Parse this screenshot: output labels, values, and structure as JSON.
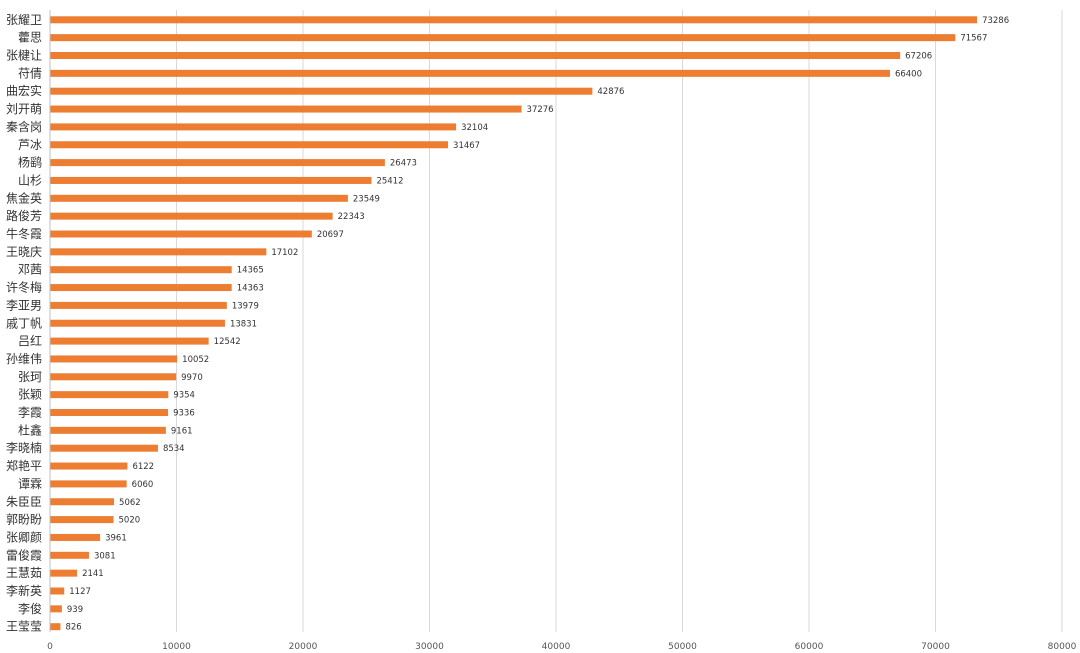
{
  "chart_data": {
    "type": "bar",
    "orientation": "horizontal",
    "title": "",
    "xlabel": "",
    "ylabel": "",
    "xlim": [
      0,
      80000
    ],
    "x_ticks": [
      0,
      10000,
      20000,
      30000,
      40000,
      50000,
      60000,
      70000,
      80000
    ],
    "grid": "vertical",
    "legend": "none",
    "bar_color": "#ed7d31",
    "categories": [
      "张耀卫",
      "藿思",
      "张楗让",
      "苻倩",
      "曲宏实",
      "刘开萌",
      "秦含岗",
      "芦冰",
      "杨鹞",
      "山杉",
      "焦金英",
      "路俊芳",
      "牛冬霞",
      "王晓庆",
      "邓茜",
      "许冬梅",
      "李亚男",
      "戚丁帆",
      "吕红",
      "孙维伟",
      "张珂",
      "张颖",
      "李霞",
      "杜鑫",
      "李晓楠",
      "郑艳平",
      "谭霖",
      "朱臣臣",
      "郭盼盼",
      "张卿颜",
      "雷俊霞",
      "王慧茹",
      "李新英",
      "李俊",
      "王莹莹"
    ],
    "values": [
      73286,
      71567,
      67206,
      66400,
      42876,
      37276,
      32104,
      31467,
      26473,
      25412,
      23549,
      22343,
      20697,
      17102,
      14365,
      14363,
      13979,
      13831,
      12542,
      10052,
      9970,
      9354,
      9336,
      9161,
      8534,
      6122,
      6060,
      5062,
      5020,
      3961,
      3081,
      2141,
      1127,
      939,
      826
    ]
  }
}
